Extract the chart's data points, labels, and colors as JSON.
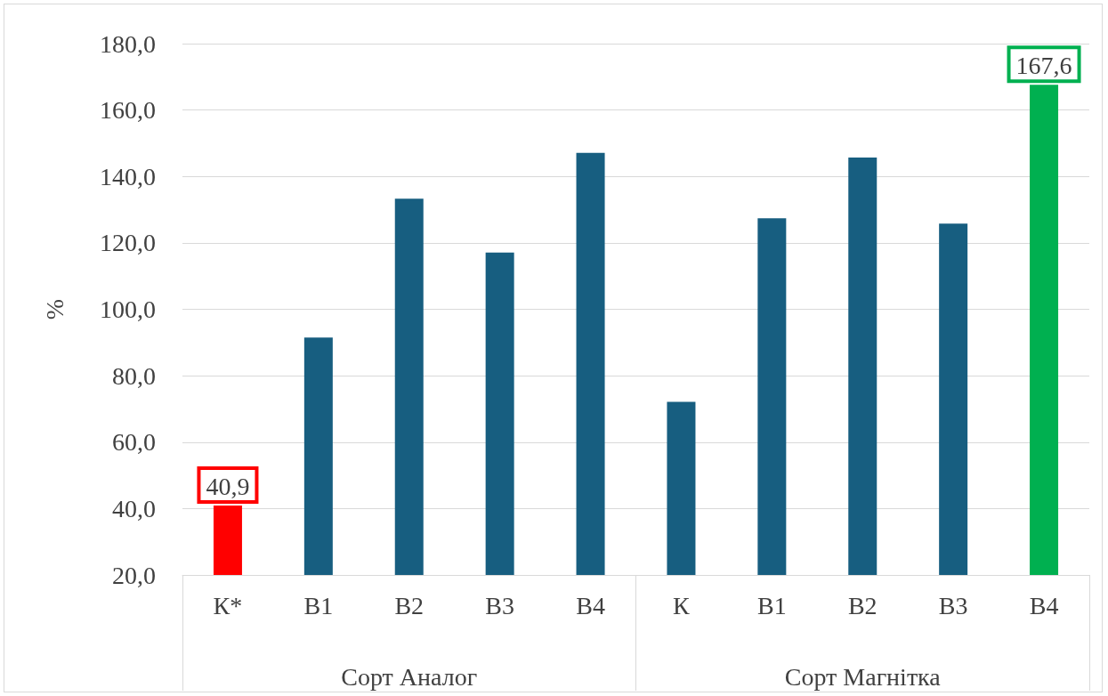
{
  "chart_data": {
    "type": "bar",
    "ylabel": "%",
    "categories": [
      "К*",
      "В1",
      "В2",
      "В3",
      "В4",
      "К",
      "В1",
      "В2",
      "В3",
      "В4"
    ],
    "values": [
      40.9,
      91.5,
      133.3,
      117.1,
      147.1,
      72.1,
      127.4,
      145.7,
      125.8,
      167.6
    ],
    "colors": [
      "#ff0000",
      "#175e80",
      "#175e80",
      "#175e80",
      "#175e80",
      "#175e80",
      "#175e80",
      "#175e80",
      "#175e80",
      "#00b050"
    ],
    "value_labels": [
      "40,9",
      null,
      null,
      null,
      null,
      null,
      null,
      null,
      null,
      "167,6"
    ],
    "annotations": [
      "Сорт Аналог",
      "Сорт Магнітка"
    ],
    "ylim": [
      20,
      180
    ],
    "yticks": [
      {
        "value": 20,
        "label": "20,0"
      },
      {
        "value": 40,
        "label": "40,0"
      },
      {
        "value": 60,
        "label": "60,0"
      },
      {
        "value": 80,
        "label": "80,0"
      },
      {
        "value": 100,
        "label": "100,0"
      },
      {
        "value": 120,
        "label": "120,0"
      },
      {
        "value": 140,
        "label": "140,0"
      },
      {
        "value": 160,
        "label": "160,0"
      },
      {
        "value": 180,
        "label": "180,0"
      }
    ],
    "grid": "y"
  }
}
